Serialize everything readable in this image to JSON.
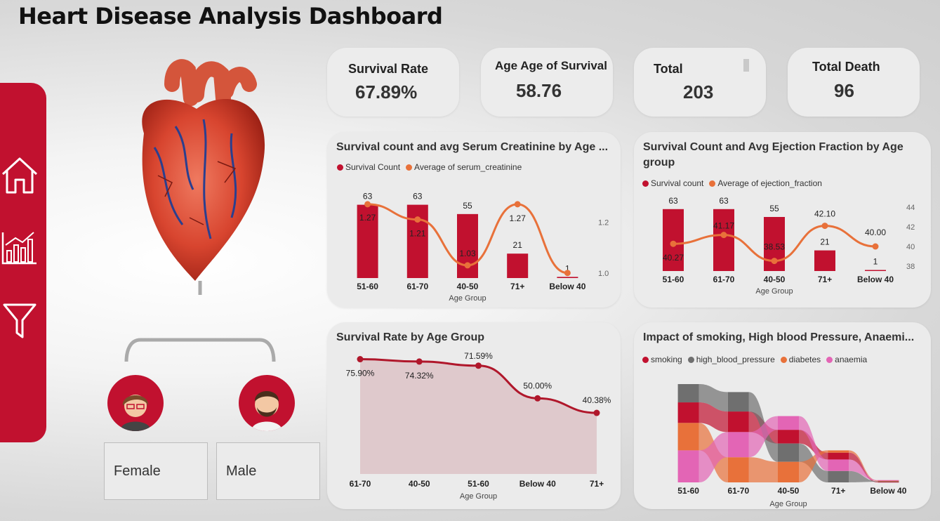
{
  "page": {
    "title": "Heart Disease Analysis Dashboard"
  },
  "colors": {
    "accent": "#c1112f",
    "orange": "#e8713a",
    "gray": "#6f6f6f",
    "pink": "#e365b5",
    "area_fill": "#dfc9cc"
  },
  "nav": {
    "icons": [
      "home-icon",
      "chart-icon",
      "filter-icon"
    ]
  },
  "kpis": {
    "survival_rate": {
      "label": "Survival Rate",
      "value": "67.89%"
    },
    "age_survival": {
      "label": "Age Age of Survival",
      "value": "58.76"
    },
    "total": {
      "label": "Total",
      "value": "203"
    },
    "total_death": {
      "label": "Total Death",
      "value": "96"
    }
  },
  "gender": {
    "female": "Female",
    "male": "Male"
  },
  "chart_data": [
    {
      "type": "bar",
      "title": "Survival count and avg Serum Creatinine by Age ...",
      "xlabel": "Age Group",
      "categories": [
        "51-60",
        "61-70",
        "40-50",
        "71+",
        "Below 40"
      ],
      "series": [
        {
          "name": "Survival Count",
          "kind": "bar",
          "values": [
            63,
            63,
            55,
            21,
            1
          ],
          "labels": [
            "63",
            "63",
            "55",
            "21",
            "1"
          ]
        },
        {
          "name": "Average of serum_creatinine",
          "kind": "line",
          "values": [
            1.27,
            1.21,
            1.03,
            1.27,
            1.0
          ],
          "labels": [
            "1.27",
            "1.21",
            "1.03",
            "1.27",
            ""
          ]
        }
      ],
      "y2_ticks": [
        "1.2",
        "1.0"
      ],
      "ylim": [
        0,
        70
      ],
      "y2lim": [
        0.98,
        1.3
      ]
    },
    {
      "type": "bar",
      "title": "Survival Count and Avg Ejection Fraction by Age group",
      "xlabel": "Age Group",
      "categories": [
        "51-60",
        "61-70",
        "40-50",
        "71+",
        "Below 40"
      ],
      "series": [
        {
          "name": "Survival count",
          "kind": "bar",
          "values": [
            63,
            63,
            55,
            21,
            1
          ],
          "labels": [
            "63",
            "63",
            "55",
            "21",
            "1"
          ]
        },
        {
          "name": "Average of ejection_fraction",
          "kind": "line",
          "values": [
            40.27,
            41.17,
            38.53,
            42.1,
            40.0
          ],
          "labels": [
            "40.27",
            "41.17",
            "38.53",
            "42.10",
            "40.00"
          ]
        }
      ],
      "y2_ticks": [
        "44",
        "42",
        "40",
        "38"
      ],
      "ylim": [
        0,
        70
      ],
      "y2lim": [
        37.5,
        44.5
      ]
    },
    {
      "type": "area",
      "title": "Survival Rate by Age Group",
      "xlabel": "Age Group",
      "categories": [
        "61-70",
        "40-50",
        "51-60",
        "Below 40",
        "71+"
      ],
      "series": [
        {
          "name": "Survival Rate",
          "values": [
            75.9,
            74.32,
            71.59,
            50.0,
            40.38
          ],
          "labels": [
            "75.90%",
            "74.32%",
            "71.59%",
            "50.00%",
            "40.38%"
          ]
        }
      ],
      "ylim": [
        0,
        78
      ]
    },
    {
      "type": "area",
      "title": "Impact of smoking, High blood Pressure, Anaemi...",
      "xlabel": "Age Group",
      "categories": [
        "51-60",
        "61-70",
        "40-50",
        "71+",
        "Below 40"
      ],
      "series": [
        {
          "name": "smoking",
          "values": [
            18,
            18,
            12,
            6,
            0.5
          ]
        },
        {
          "name": "high_blood_pressure",
          "values": [
            16,
            17,
            16,
            10,
            0.5
          ]
        },
        {
          "name": "diabetes",
          "values": [
            24,
            22,
            18,
            2,
            0.5
          ]
        },
        {
          "name": "anaemia",
          "values": [
            28,
            22,
            12,
            10,
            0.5
          ]
        }
      ]
    }
  ]
}
